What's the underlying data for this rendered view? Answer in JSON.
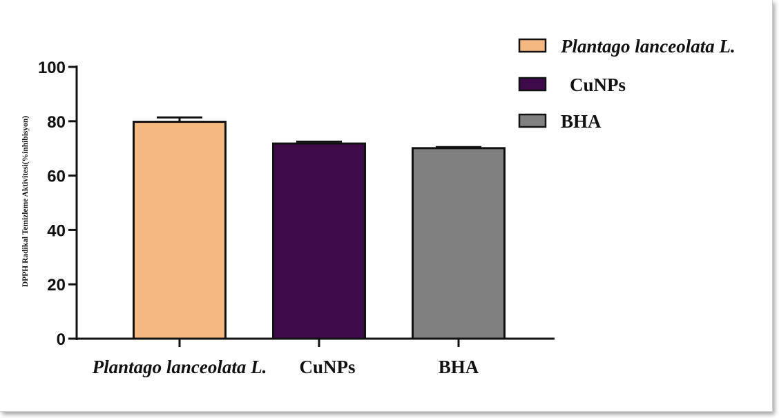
{
  "chart_data": {
    "type": "bar",
    "categories": [
      "Plantago lanceolata L.",
      "CuNPs",
      "BHA"
    ],
    "values": [
      79.8,
      71.8,
      70.1
    ],
    "errors": [
      1.6,
      0.7,
      0.4
    ],
    "colors": [
      "#f4b880",
      "#3e0a4a",
      "#808080"
    ],
    "title": "",
    "xlabel": "",
    "ylabel": "DPPH Radikal Temizleme Aktivitesi(%inhibisyon)",
    "ylim": [
      0,
      100
    ],
    "yticks": [
      0,
      20,
      40,
      60,
      80,
      100
    ],
    "grid": false,
    "legend_position": "top-right",
    "legend": [
      {
        "label": "Plantago lanceolata L.",
        "color": "#f4b880"
      },
      {
        "label": "CuNPs",
        "color": "#3e0a4a"
      },
      {
        "label": "BHA",
        "color": "#808080"
      }
    ]
  }
}
